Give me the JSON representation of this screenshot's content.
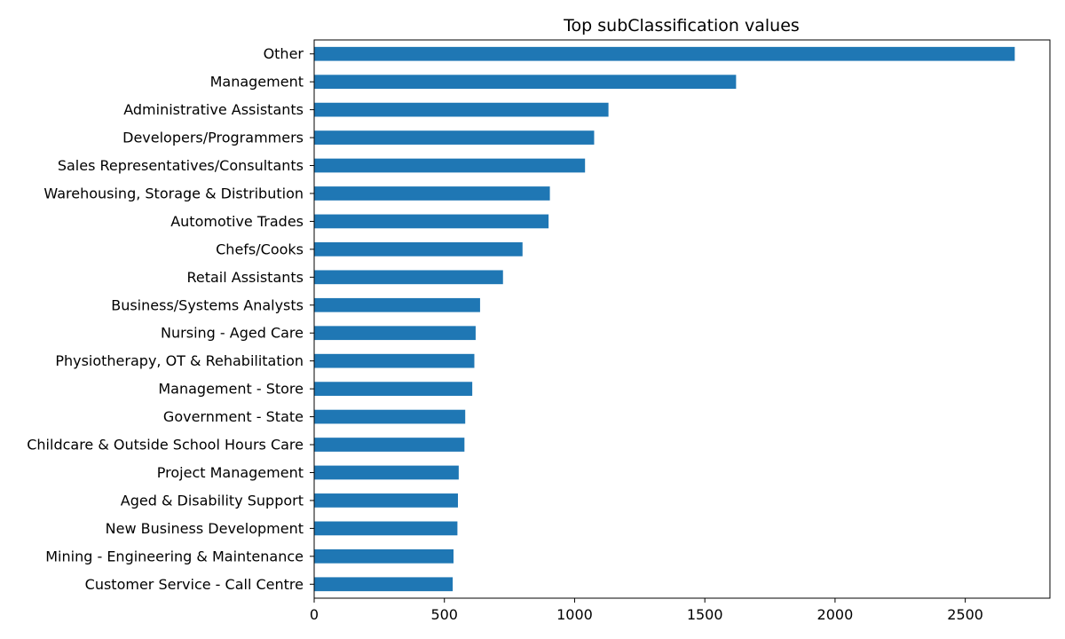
{
  "chart_data": {
    "type": "bar",
    "orientation": "horizontal",
    "title": "Top subClassification values",
    "xlabel": "",
    "ylabel": "",
    "categories": [
      "Other",
      "Management",
      "Administrative Assistants",
      "Developers/Programmers",
      "Sales Representatives/Consultants",
      "Warehousing, Storage & Distribution",
      "Automotive Trades",
      "Chefs/Cooks",
      "Retail Assistants",
      "Business/Systems Analysts",
      "Nursing - Aged Care",
      "Physiotherapy, OT & Rehabilitation",
      "Management - Store",
      "Government - State",
      "Childcare & Outside School Hours Care",
      "Project Management",
      "Aged & Disability Support",
      "New Business Development",
      "Mining - Engineering & Maintenance",
      "Customer Service - Call Centre"
    ],
    "values": [
      2690,
      1620,
      1130,
      1075,
      1040,
      905,
      900,
      800,
      725,
      637,
      620,
      615,
      607,
      580,
      577,
      555,
      552,
      550,
      535,
      532
    ],
    "xlim": [
      0,
      2825
    ],
    "xticks": [
      0,
      500,
      1000,
      1500,
      2000,
      2500
    ],
    "grid": false,
    "legend": "none",
    "bar_color": "#1f77b4"
  }
}
